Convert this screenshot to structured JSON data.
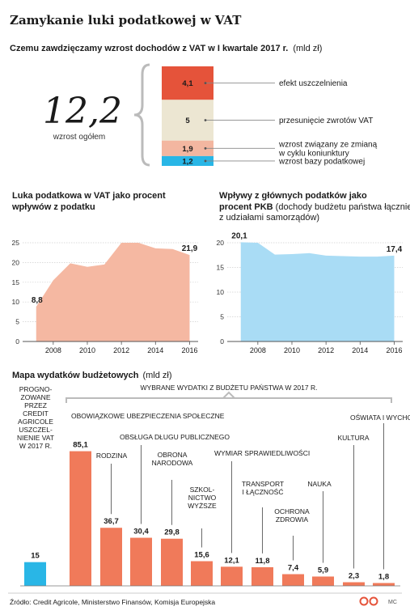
{
  "title": "Zamykanie luki podatkowej w VAT",
  "colors": {
    "accent_red": "#e5533a",
    "beige": "#ece6d2",
    "salmon": "#f3b6a0",
    "cyan": "#29b6e6",
    "area_salmon": "#f5b8a2",
    "area_blue": "#a9dcf5",
    "bar_orange": "#f07a5a",
    "bar_cyan": "#29b6e6",
    "grid": "#cfcfcf",
    "text": "#1a1a1a"
  },
  "section1": {
    "heading": "Czemu zawdzięczamy wzrost dochodów z VAT w I kwartale 2017 r.",
    "unit": "(mld zł)",
    "total_value": "12,2",
    "total_label": "wzrost ogółem"
  },
  "section2": {
    "heading_line1": "Luka podatkowa w VAT jako procent",
    "heading_line2": "wpływów z podatku"
  },
  "section3": {
    "heading_line1": "Wpływy z głównych podatków jako",
    "heading_line2_bold": "procent PKB",
    "heading_line2_rest": " (dochody budżetu państwa łącznie",
    "heading_line3": "z udziałami samorządów)"
  },
  "section4": {
    "heading": "Mapa wydatków budżetowych",
    "unit": "(mld zł)",
    "bracket_label": "WYBRANE WYDATKI Z BUDŻETU PAŃSTWA W 2017 R.",
    "left_note": [
      "PROGNO-",
      "ZOWANE",
      "PRZEZ",
      "CREDIT",
      "AGRICOLE",
      "USZCZEL-",
      "NIENIE VAT",
      "W 2017 R."
    ]
  },
  "footer": {
    "source": "Źródło: Credit Agricole, Ministerstwo Finansów, Komisja Europejska",
    "brand": "MC"
  },
  "chart_data": [
    {
      "type": "bar",
      "stacked": true,
      "title": "Czemu zawdzięczamy wzrost dochodów z VAT w I kwartale 2017 r.",
      "unit": "mld zł",
      "total": "12,2",
      "segments": [
        {
          "label": "efekt uszczelnienia",
          "value": 4.1,
          "display": "4,1",
          "color": "#e5533a"
        },
        {
          "label": "przesunięcie zwrotów VAT",
          "value": 5,
          "display": "5",
          "color": "#ece6d2"
        },
        {
          "label": "wzrost związany ze zmianą w cyklu koniunktury",
          "label_lines": [
            "wzrost związany ze zmianą",
            "w cyklu koniunktury"
          ],
          "value": 1.9,
          "display": "1,9",
          "color": "#f3b6a0"
        },
        {
          "label": "wzrost bazy podatkowej",
          "value": 1.2,
          "display": "1,2",
          "color": "#29b6e6"
        }
      ]
    },
    {
      "type": "area",
      "title": "Luka podatkowa w VAT jako procent wpływów z podatku",
      "x": [
        2007,
        2008,
        2009,
        2010,
        2011,
        2012,
        2013,
        2014,
        2015,
        2016
      ],
      "y": [
        8.8,
        15.5,
        19.8,
        18.9,
        19.5,
        25.0,
        25.0,
        23.6,
        23.4,
        21.9
      ],
      "xlim": [
        2006.3,
        2016.5
      ],
      "ylim": [
        0,
        25
      ],
      "yticks": [
        0,
        5,
        10,
        15,
        20,
        25
      ],
      "xticks": [
        2008,
        2010,
        2012,
        2014,
        2016
      ],
      "labels": [
        {
          "x": 2007,
          "text": "8,8"
        },
        {
          "x": 2016,
          "text": "21,9"
        }
      ],
      "grid": true,
      "color": "#f5b8a2"
    },
    {
      "type": "area",
      "title": "Wpływy z głównych podatków jako procent PKB",
      "x": [
        2007,
        2008,
        2009,
        2010,
        2011,
        2012,
        2013,
        2014,
        2015,
        2016
      ],
      "y": [
        20.1,
        20.0,
        17.6,
        17.7,
        17.9,
        17.4,
        17.3,
        17.2,
        17.2,
        17.4
      ],
      "xlim": [
        2006.3,
        2016.5
      ],
      "ylim": [
        0,
        20
      ],
      "yticks": [
        0,
        5,
        10,
        15,
        20
      ],
      "xticks": [
        2008,
        2010,
        2012,
        2014,
        2016
      ],
      "labels": [
        {
          "x": 2007,
          "text": "20,1"
        },
        {
          "x": 2016,
          "text": "17,4"
        }
      ],
      "grid": true,
      "color": "#a9dcf5"
    },
    {
      "type": "bar",
      "title": "Mapa wydatków budżetowych",
      "unit": "mld zł",
      "ylim": [
        0,
        90
      ],
      "bars": [
        {
          "category": "PROGNOZOWANE PRZEZ CREDIT AGRICOLE USZCZELNIENIE VAT W 2017 R.",
          "value": 15,
          "display": "15",
          "color": "#29b6e6",
          "label_lines": []
        },
        {
          "category": "OBOWIĄZKOWE UBEZPIECZENIA SPOŁECZNE",
          "value": 85.1,
          "display": "85,1",
          "color": "#f07a5a",
          "label_lines": [
            "OBOWIĄZKOWE UBEZPIECZENIA SPOŁECZNE"
          ]
        },
        {
          "category": "RODZINA",
          "value": 36.7,
          "display": "36,7",
          "color": "#f07a5a",
          "label_lines": [
            "RODZINA"
          ]
        },
        {
          "category": "OBSŁUGA DŁUGU PUBLICZNEGO",
          "value": 30.4,
          "display": "30,4",
          "color": "#f07a5a",
          "label_lines": [
            "OBSŁUGA DŁUGU PUBLICZNEGO"
          ]
        },
        {
          "category": "OBRONA NARODOWA",
          "value": 29.8,
          "display": "29,8",
          "color": "#f07a5a",
          "label_lines": [
            "OBRONA",
            "NARODOWA"
          ]
        },
        {
          "category": "SZKOLNICTWO WYŻSZE",
          "value": 15.6,
          "display": "15,6",
          "color": "#f07a5a",
          "label_lines": [
            "SZKOL-",
            "NICTWO",
            "WYŻSZE"
          ]
        },
        {
          "category": "WYMIAR SPRAWIEDLIWOŚCI",
          "value": 12.1,
          "display": "12,1",
          "color": "#f07a5a",
          "label_lines": [
            "WYMIAR SPRAWIEDLIWOŚCI"
          ]
        },
        {
          "category": "TRANSPORT I ŁĄCZNOŚĆ",
          "value": 11.8,
          "display": "11,8",
          "color": "#f07a5a",
          "label_lines": [
            "TRANSPORT",
            "I ŁĄCZNOŚĆ"
          ]
        },
        {
          "category": "OCHRONA ZDROWIA",
          "value": 7.4,
          "display": "7,4",
          "color": "#f07a5a",
          "label_lines": [
            "OCHRONA",
            "ZDROWIA"
          ]
        },
        {
          "category": "NAUKA",
          "value": 5.9,
          "display": "5,9",
          "color": "#f07a5a",
          "label_lines": [
            "NAUKA"
          ]
        },
        {
          "category": "KULTURA",
          "value": 2.3,
          "display": "2,3",
          "color": "#f07a5a",
          "label_lines": [
            "KULTURA"
          ]
        },
        {
          "category": "OŚWIATA I WYCHOWANIE",
          "value": 1.8,
          "display": "1,8",
          "color": "#f07a5a",
          "label_lines": [
            "OŚWIATA I WYCHOWANIE"
          ]
        }
      ]
    }
  ]
}
